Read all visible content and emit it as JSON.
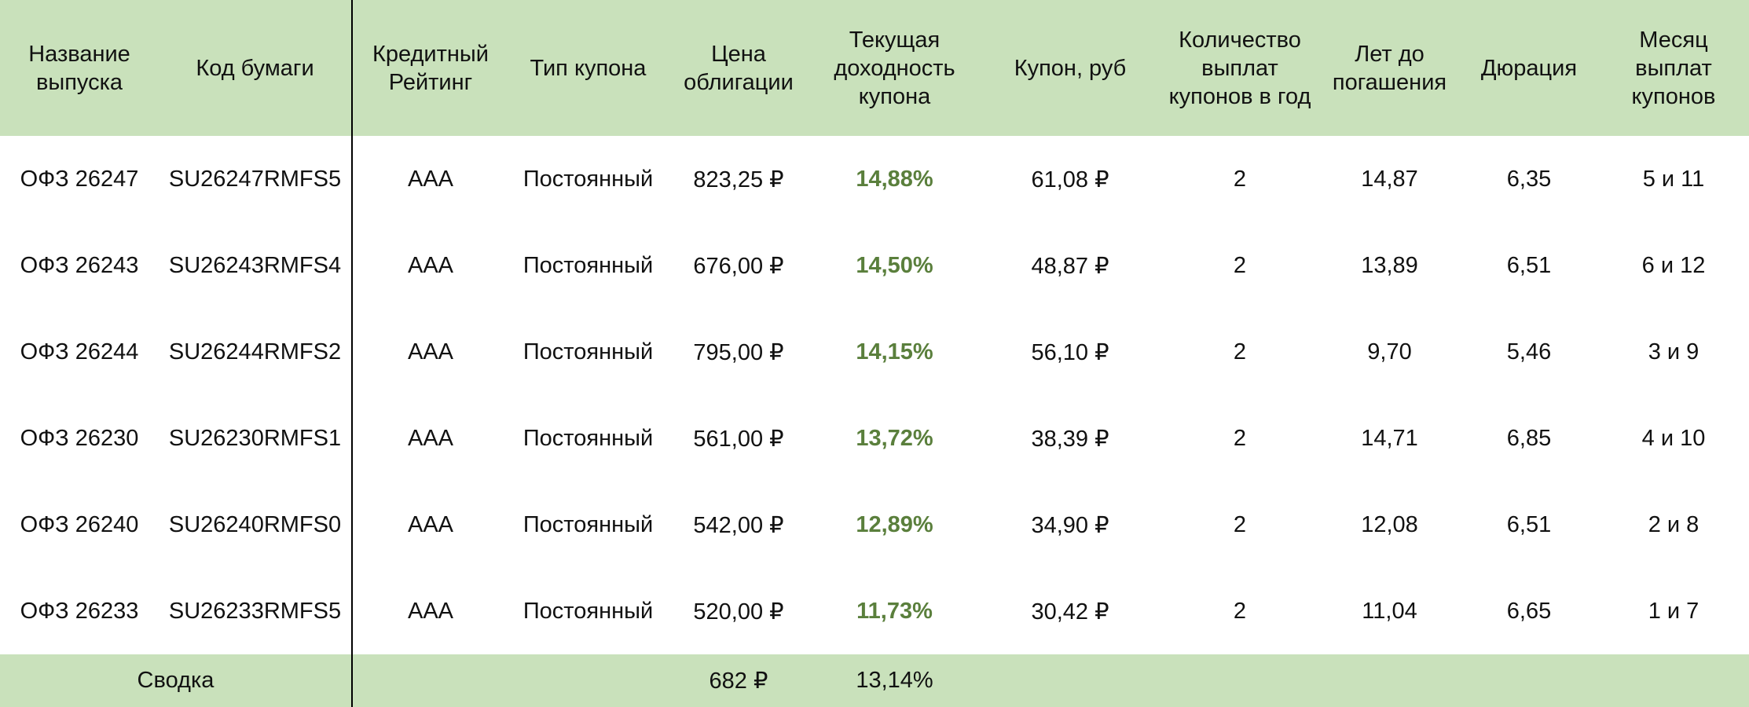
{
  "header": {
    "columns": [
      "Название выпуска",
      "Код бумаги",
      "Кредитный Рейтинг",
      "Тип купона",
      "Цена облигации",
      "Текущая доходность купона",
      "Купон, руб",
      "Количество выплат купонов в год",
      "Лет до погашения",
      "Дюрация",
      "Месяц выплат купонов"
    ]
  },
  "table": {
    "rows": [
      [
        "ОФЗ 26247",
        "SU26247RMFS5",
        "AAA",
        "Постоянный",
        "823,25 ₽",
        "14,88%",
        "61,08 ₽",
        "2",
        "14,87",
        "6,35",
        "5 и 11"
      ],
      [
        "ОФЗ 26243",
        "SU26243RMFS4",
        "AAA",
        "Постоянный",
        "676,00 ₽",
        "14,50%",
        "48,87 ₽",
        "2",
        "13,89",
        "6,51",
        "6 и 12"
      ],
      [
        "ОФЗ 26244",
        "SU26244RMFS2",
        "AAA",
        "Постоянный",
        "795,00 ₽",
        "14,15%",
        "56,10 ₽",
        "2",
        "9,70",
        "5,46",
        "3 и 9"
      ],
      [
        "ОФЗ 26230",
        "SU26230RMFS1",
        "AAA",
        "Постоянный",
        "561,00 ₽",
        "13,72%",
        "38,39 ₽",
        "2",
        "14,71",
        "6,85",
        "4 и 10"
      ],
      [
        "ОФЗ 26240",
        "SU26240RMFS0",
        "AAA",
        "Постоянный",
        "542,00 ₽",
        "12,89%",
        "34,90 ₽",
        "2",
        "12,08",
        "6,51",
        "2 и 8"
      ],
      [
        "ОФЗ 26233",
        "SU26233RMFS5",
        "AAA",
        "Постоянный",
        "520,00 ₽",
        "11,73%",
        "30,42 ₽",
        "2",
        "11,04",
        "6,65",
        "1 и 7"
      ]
    ]
  },
  "summary": {
    "label": "Сводка",
    "price": "682 ₽",
    "yield": "13,14%"
  }
}
